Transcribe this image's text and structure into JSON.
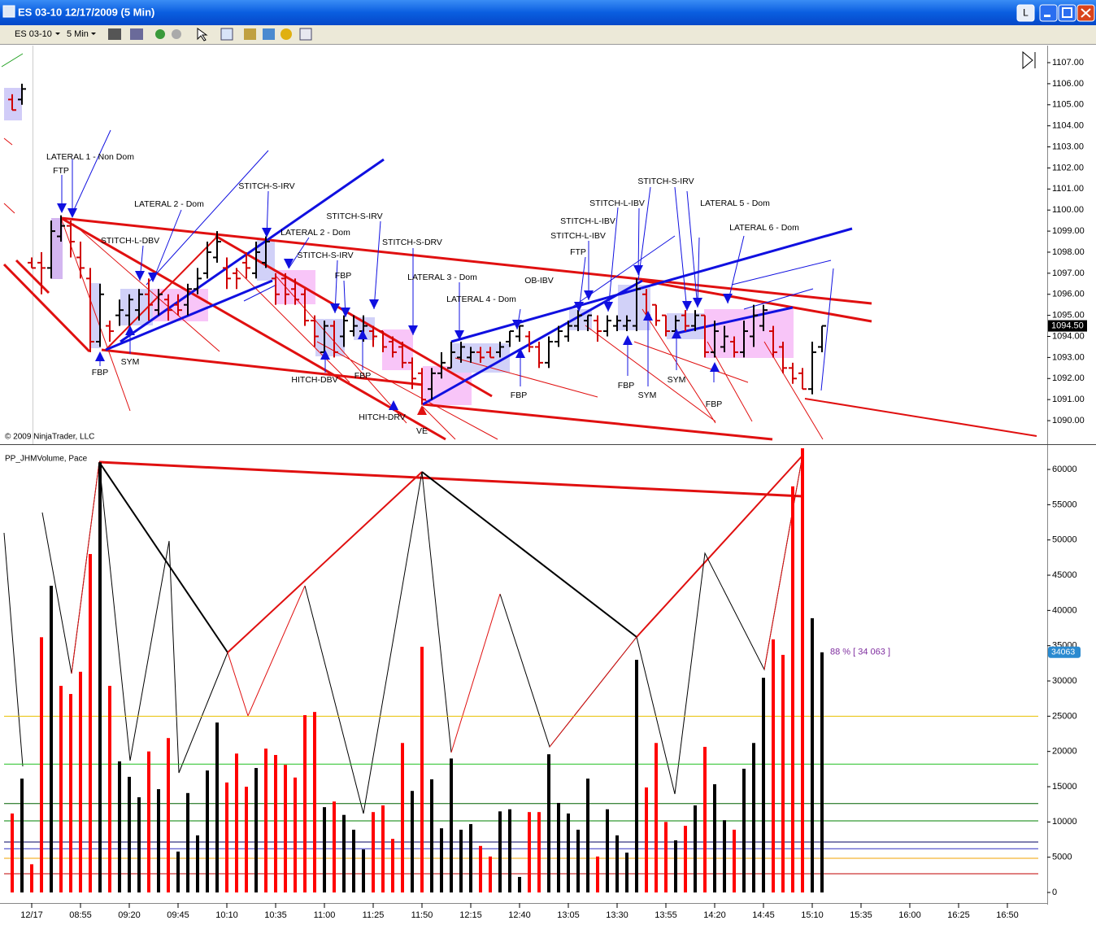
{
  "window": {
    "title": "ES 03-10  12/17/2009 (5 Min)",
    "instrument": "ES 03-10",
    "interval": "5 Min",
    "button_l": "L"
  },
  "chart_data": [
    {
      "type": "ohlc",
      "copyright": "© 2009 NinjaTrader, LLC",
      "open": [
        1105.25,
        1105.25,
        1097.5,
        1097.5,
        1097.25,
        1098.75,
        1099.25,
        1097.75,
        1096.75,
        1093.75,
        1094.5,
        1095,
        1095,
        1095.25,
        1096,
        1095.25,
        1095.75,
        1095.5,
        1095.5,
        1096.25,
        1097,
        1097.75,
        1097.25,
        1097,
        1097.5,
        1097,
        1097.5,
        1096.75,
        1096.75,
        1096.25,
        1096,
        1094.75,
        1093.25,
        1094.5,
        1094,
        1094.25,
        1094.25,
        1094.25,
        1094.25,
        1093.75,
        1093.5,
        1092.75,
        1092.25,
        1091.5,
        1092.25,
        1092.5,
        1093,
        1093,
        1093.25,
        1093.25,
        1093.25,
        1093.75,
        1094,
        1094,
        1093.5,
        1092.75,
        1093.75,
        1094,
        1094.5,
        1094.75,
        1094.75,
        1094.25,
        1094.5,
        1094.5,
        1094.5,
        1096,
        1095.5,
        1095,
        1094.25,
        1095,
        1094.5,
        1095,
        1093.25,
        1093.5,
        1093.75,
        1093.25,
        1094,
        1094.5,
        1094.25,
        1093.5,
        1092.5,
        1092.25,
        1091.5,
        1093.5
      ],
      "high": [
        1105.5,
        1106,
        1097.75,
        1098,
        1099.5,
        1099.75,
        1099.5,
        1098.5,
        1097.25,
        1096.5,
        1094.75,
        1095.75,
        1096,
        1096.25,
        1096.75,
        1096.25,
        1096,
        1096,
        1096.5,
        1097.25,
        1098.5,
        1099,
        1097.75,
        1097.25,
        1098,
        1098.5,
        1098.75,
        1097,
        1097,
        1096.75,
        1096.25,
        1095,
        1094.75,
        1094.75,
        1095,
        1095,
        1095,
        1094.5,
        1094.25,
        1094,
        1093.75,
        1093,
        1092.5,
        1092.5,
        1093.25,
        1093.75,
        1093.75,
        1093.5,
        1093.5,
        1093.5,
        1093.75,
        1094.25,
        1094.5,
        1094.25,
        1093.75,
        1094,
        1094.5,
        1094.75,
        1095.25,
        1095,
        1095,
        1095,
        1095,
        1095,
        1096.75,
        1096.25,
        1095.5,
        1095,
        1095,
        1095.25,
        1095.25,
        1095,
        1094.75,
        1094.5,
        1094,
        1094.75,
        1095.5,
        1095.5,
        1094.5,
        1093.75,
        1092.75,
        1092.5,
        1093.75,
        1094.5
      ],
      "low": [
        1104.75,
        1105,
        1097.25,
        1096,
        1096.75,
        1098.5,
        1097.75,
        1096.75,
        1093.25,
        1093.5,
        1093.75,
        1094.5,
        1094.5,
        1094.75,
        1094.75,
        1095,
        1094.75,
        1095,
        1095,
        1096,
        1096.75,
        1097.5,
        1096.25,
        1096.25,
        1096.75,
        1096.75,
        1097.25,
        1095.5,
        1095.5,
        1095.5,
        1094.5,
        1093.5,
        1093,
        1093,
        1093.5,
        1094,
        1093.75,
        1093.5,
        1093.25,
        1093,
        1092.5,
        1091.5,
        1090.75,
        1091,
        1092,
        1092.5,
        1092.75,
        1092.75,
        1092.75,
        1093,
        1093,
        1093.5,
        1093.75,
        1093.25,
        1092.5,
        1092.5,
        1093.5,
        1093.75,
        1094.25,
        1094.25,
        1093.75,
        1094,
        1094.25,
        1094.25,
        1094.25,
        1094.75,
        1094.5,
        1094,
        1094,
        1094.25,
        1094.25,
        1093,
        1093,
        1093.25,
        1093,
        1093,
        1093.5,
        1094.25,
        1093,
        1092.25,
        1091.75,
        1091.5,
        1091.25,
        1093.25
      ],
      "close": [
        1104.75,
        1105.75,
        1097.25,
        1097.25,
        1099,
        1099.25,
        1098.5,
        1097.25,
        1093.75,
        1096,
        1094.25,
        1095.25,
        1095.75,
        1096,
        1095.5,
        1096,
        1095.25,
        1095.25,
        1096.25,
        1096.75,
        1098,
        1098.5,
        1096.75,
        1096.75,
        1097.25,
        1098,
        1098.5,
        1096,
        1096,
        1095.75,
        1094.75,
        1094,
        1094.5,
        1093.25,
        1094.75,
        1094.5,
        1094.5,
        1094,
        1093.5,
        1093.25,
        1092.75,
        1092,
        1091,
        1092.25,
        1092.75,
        1093.25,
        1093.5,
        1093.25,
        1093,
        1093,
        1093.5,
        1094.25,
        1094.5,
        1093.5,
        1092.75,
        1093.75,
        1094.25,
        1094.5,
        1095,
        1095,
        1094.25,
        1094.75,
        1094.75,
        1094.75,
        1096.25,
        1095,
        1094.75,
        1094.25,
        1094.75,
        1094.5,
        1095,
        1093.25,
        1094.25,
        1094,
        1093.25,
        1094.25,
        1095,
        1095.25,
        1093.25,
        1092.5,
        1092,
        1091.5,
        1093.25,
        1094.5
      ],
      "up_color": "#000000",
      "down_color": "#d00000",
      "ylim": [
        1088.92,
        1107.58
      ],
      "yticks": [
        {
          "value": 1090,
          "label": "1090.00"
        },
        {
          "value": 1091,
          "label": "1091.00"
        },
        {
          "value": 1092,
          "label": "1092.00"
        },
        {
          "value": 1093,
          "label": "1093.00"
        },
        {
          "value": 1094,
          "label": "1094.00"
        },
        {
          "value": 1095,
          "label": "1095.00"
        },
        {
          "value": 1096,
          "label": "1096.00"
        },
        {
          "value": 1097,
          "label": "1097.00"
        },
        {
          "value": 1098,
          "label": "1098.00"
        },
        {
          "value": 1099,
          "label": "1099.00"
        },
        {
          "value": 1100,
          "label": "1100.00"
        },
        {
          "value": 1101,
          "label": "1101.00"
        },
        {
          "value": 1102,
          "label": "1102.00"
        },
        {
          "value": 1103,
          "label": "1103.00"
        },
        {
          "value": 1104,
          "label": "1104.00"
        },
        {
          "value": 1105,
          "label": "1105.00"
        },
        {
          "value": 1106,
          "label": "1106.00"
        },
        {
          "value": 1107,
          "label": "1107.00"
        }
      ],
      "last_value": {
        "value": 1094.5,
        "label": "1094.50"
      },
      "annotations": [
        "LATERAL 1 - Non Dom",
        "FTP",
        "LATERAL 2 - Dom",
        "STITCH-L-DBV",
        "STITCH-S-IRV",
        "LATERAL 2 - Dom",
        "STITCH-S-IRV",
        "STITCH-S-IRV",
        "FBP",
        "STITCH-S-DRV",
        "LATERAL 3 - Dom",
        "LATERAL 4 - Dom",
        "OB-IBV",
        "FTP",
        "STITCH-L-IBV",
        "STITCH-L-IBV",
        "STITCH-L-IBV",
        "STITCH-S-IRV",
        "LATERAL 5 - Dom",
        "LATERAL 6 - Dom",
        "FBP",
        "SYM",
        "HITCH-DBV",
        "FBP",
        "HITCH-DRV",
        "VE",
        "FBP",
        "FBP",
        "SYM",
        "SYM",
        "FBP"
      ]
    },
    {
      "type": "bar",
      "title": "PP_JHMVolume, Pace",
      "categories": [
        null,
        null,
        "12/17",
        null,
        null,
        null,
        null,
        "08:55",
        null,
        null,
        null,
        null,
        "09:20",
        null,
        null,
        null,
        null,
        "09:45",
        null,
        null,
        null,
        null,
        "10:10",
        null,
        null,
        null,
        null,
        "10:35",
        null,
        null,
        null,
        null,
        "11:00",
        null,
        null,
        null,
        null,
        "11:25",
        null,
        null,
        null,
        null,
        "11:50",
        null,
        null,
        null,
        null,
        "12:15",
        null,
        null,
        null,
        null,
        "12:40",
        null,
        null,
        null,
        null,
        "13:05",
        null,
        null,
        null,
        null,
        "13:30",
        null,
        null,
        null,
        null,
        "13:55",
        null,
        null,
        null,
        null,
        "14:20",
        null,
        null,
        null,
        null,
        "14:45",
        null,
        null,
        null,
        null,
        "15:10",
        null,
        null,
        null,
        null,
        "15:35",
        null,
        null,
        null,
        null,
        "16:00",
        null,
        null,
        null,
        null,
        "16:25",
        null,
        null,
        null,
        null,
        "16:50",
        null,
        null,
        null
      ],
      "values": [
        11200,
        16150,
        4000,
        36200,
        43500,
        29300,
        28150,
        31300,
        48000,
        61000,
        29300,
        18600,
        16400,
        13500,
        20000,
        14650,
        21900,
        5800,
        14100,
        8100,
        17300,
        24100,
        15600,
        19700,
        15000,
        17650,
        20400,
        19500,
        18100,
        16300,
        25150,
        25600,
        12100,
        12900,
        11000,
        8900,
        6100,
        11400,
        12350,
        7600,
        21200,
        14400,
        34850,
        16050,
        9100,
        19000,
        8900,
        9700,
        6600,
        5100,
        11500,
        11800,
        2200,
        11400,
        11400,
        19600,
        12700,
        11200,
        8900,
        16150,
        5100,
        11800,
        8100,
        5650,
        33000,
        14900,
        21200,
        10000,
        7400,
        9450,
        12350,
        20650,
        15350,
        10250,
        8900,
        17550,
        21200,
        30450,
        35900,
        33700,
        57600,
        63000,
        38900,
        34063,
        null,
        null,
        null,
        null,
        null,
        null,
        null,
        null,
        null,
        null,
        null,
        null,
        null,
        null,
        null,
        null,
        null,
        null,
        null,
        null,
        null,
        null
      ],
      "colors": [
        "red",
        "black",
        "red",
        "red",
        "black",
        "red",
        "red",
        "red",
        "red",
        "black",
        "red",
        "black",
        "black",
        "black",
        "red",
        "black",
        "red",
        "black",
        "black",
        "black",
        "black",
        "black",
        "red",
        "red",
        "red",
        "black",
        "red",
        "red",
        "red",
        "red",
        "red",
        "red",
        "black",
        "red",
        "black",
        "black",
        "black",
        "red",
        "red",
        "red",
        "red",
        "black",
        "red",
        "black",
        "black",
        "black",
        "black",
        "black",
        "red",
        "red",
        "black",
        "black",
        "black",
        "red",
        "red",
        "black",
        "black",
        "black",
        "black",
        "black",
        "red",
        "black",
        "black",
        "black",
        "black",
        "red",
        "red",
        "red",
        "black",
        "red",
        "black",
        "red",
        "black",
        "black",
        "red",
        "black",
        "black",
        "black",
        "red",
        "red",
        "red",
        "red",
        "black",
        "black",
        null,
        null,
        null,
        null,
        null,
        null,
        null,
        null,
        null,
        null,
        null,
        null,
        null,
        null,
        null,
        null,
        null,
        null,
        null,
        null,
        null,
        null
      ],
      "ylim": [
        -1500,
        63350
      ],
      "yticks": [
        0,
        5000,
        10000,
        15000,
        20000,
        25000,
        30000,
        35000,
        40000,
        45000,
        50000,
        55000,
        60000
      ],
      "levels": [
        {
          "value": 25000,
          "color": "#e8c000"
        },
        {
          "value": 18200,
          "color": "#20c020"
        },
        {
          "value": 12600,
          "color": "#006000"
        },
        {
          "value": 10150,
          "color": "#008000"
        },
        {
          "value": 7150,
          "color": "#000060"
        },
        {
          "value": 6200,
          "color": "#3030c0"
        },
        {
          "value": 4850,
          "color": "#f0a000"
        },
        {
          "value": 2650,
          "color": "#c00000"
        }
      ],
      "last_value": 34063,
      "annotation": "88 % [ 34 063 ]"
    }
  ]
}
